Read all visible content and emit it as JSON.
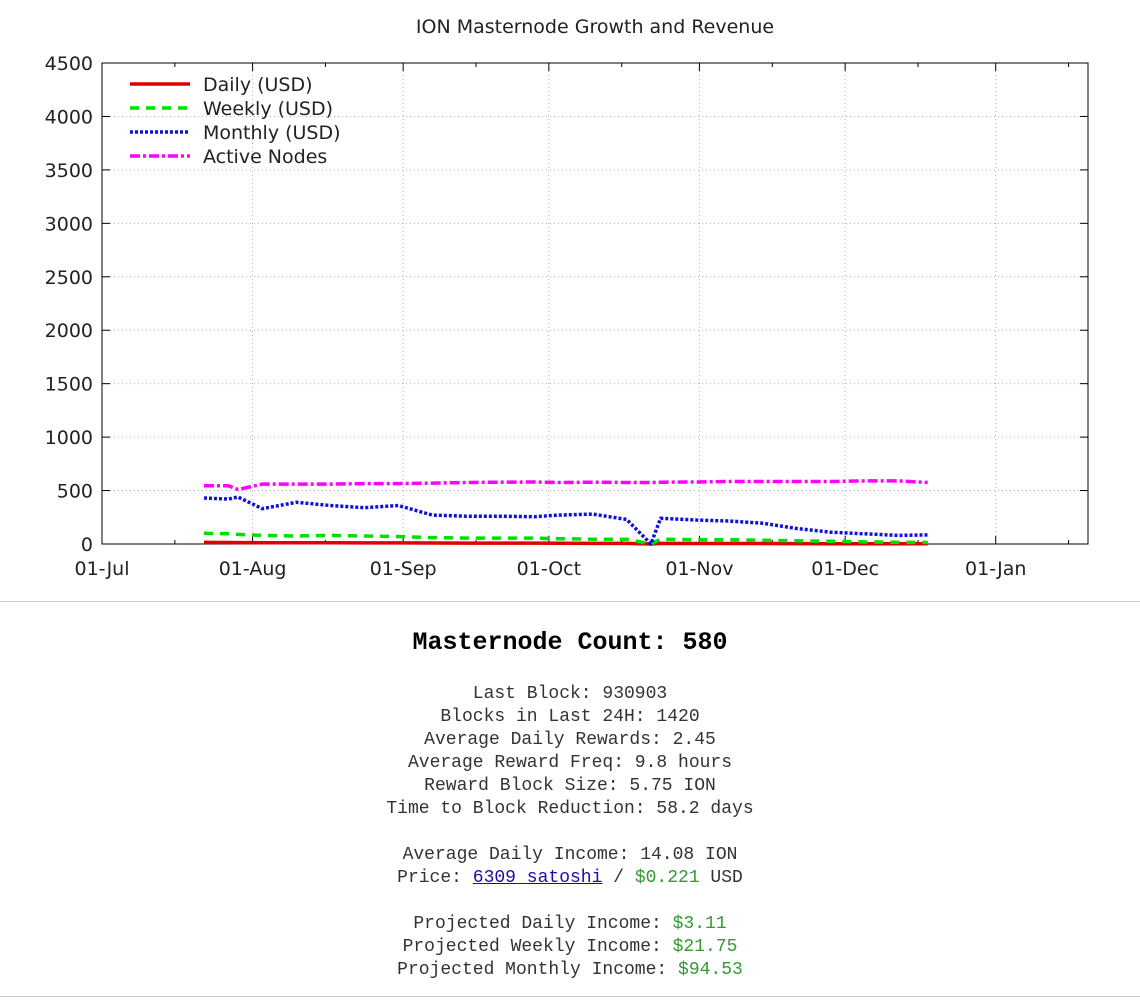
{
  "chart_data": {
    "type": "line",
    "title": "ION Masternode Growth and Revenue",
    "xlabel": "",
    "ylabel": "",
    "ylim": [
      0,
      4500
    ],
    "yticks": [
      0,
      500,
      1000,
      1500,
      2000,
      2500,
      3000,
      3500,
      4000,
      4500
    ],
    "xlim": [
      "2018-07-01",
      "2019-01-20"
    ],
    "xticks": [
      {
        "date": "2018-07-01",
        "label": "01-Jul"
      },
      {
        "date": "2018-08-01",
        "label": "01-Aug"
      },
      {
        "date": "2018-09-01",
        "label": "01-Sep"
      },
      {
        "date": "2018-10-01",
        "label": "01-Oct"
      },
      {
        "date": "2018-11-01",
        "label": "01-Nov"
      },
      {
        "date": "2018-12-01",
        "label": "01-Dec"
      },
      {
        "date": "2019-01-01",
        "label": "01-Jan"
      }
    ],
    "grid": true,
    "legend": "top-left",
    "x": [
      "2018-07-22",
      "2018-07-27",
      "2018-07-29",
      "2018-08-03",
      "2018-08-10",
      "2018-08-17",
      "2018-08-24",
      "2018-08-31",
      "2018-09-07",
      "2018-09-14",
      "2018-09-21",
      "2018-09-28",
      "2018-10-03",
      "2018-10-10",
      "2018-10-17",
      "2018-10-22",
      "2018-10-24",
      "2018-10-31",
      "2018-11-07",
      "2018-11-14",
      "2018-11-21",
      "2018-11-28",
      "2018-12-05",
      "2018-12-12",
      "2018-12-18"
    ],
    "series": [
      {
        "name": "Daily (USD)",
        "color": "#e00000",
        "dash": "",
        "values": [
          15,
          14,
          13,
          12,
          11,
          11,
          10,
          10,
          9,
          8,
          8,
          8,
          7,
          6,
          6,
          0,
          6,
          5,
          5,
          5,
          4,
          3,
          3,
          2,
          2
        ]
      },
      {
        "name": "Weekly (USD)",
        "color": "#00e000",
        "dash": "9,7",
        "values": [
          100,
          95,
          90,
          80,
          75,
          80,
          75,
          70,
          60,
          55,
          55,
          55,
          50,
          45,
          45,
          0,
          45,
          40,
          40,
          35,
          30,
          25,
          20,
          15,
          15
        ]
      },
      {
        "name": "Monthly (USD)",
        "color": "#1010dd",
        "dash": "3,2",
        "values": [
          430,
          420,
          440,
          330,
          390,
          360,
          340,
          360,
          270,
          260,
          260,
          255,
          270,
          280,
          230,
          0,
          240,
          225,
          215,
          195,
          145,
          110,
          95,
          80,
          85
        ]
      },
      {
        "name": "Active Nodes",
        "color": "#ff00ff",
        "dash": "10,3,3,3",
        "values": [
          545,
          545,
          510,
          560,
          560,
          560,
          565,
          565,
          570,
          575,
          578,
          580,
          575,
          578,
          575,
          575,
          578,
          580,
          585,
          585,
          585,
          585,
          590,
          590,
          575
        ]
      }
    ]
  },
  "stats": {
    "masternode_count": "Masternode Count: 580",
    "last_block": "Last Block: 930903",
    "blocks_24h": "Blocks in Last 24H: 1420",
    "avg_daily_rewards": "Average Daily Rewards: 2.45",
    "avg_reward_freq": "Average Reward Freq: 9.8 hours",
    "reward_block_size": "Reward Block Size: 5.75 ION",
    "time_to_reduction": "Time to Block Reduction: 58.2 days",
    "avg_daily_income": "Average Daily Income: 14.08 ION",
    "price_label": "Price: ",
    "price_satoshi": "6309 satoshi",
    "price_sep": " / ",
    "price_usd": "$0.221",
    "price_unit": " USD",
    "proj_daily_label": "Projected Daily Income: ",
    "proj_daily_value": "$3.11",
    "proj_weekly_label": "Projected Weekly Income: ",
    "proj_weekly_value": "$21.75",
    "proj_monthly_label": "Projected Monthly Income: ",
    "proj_monthly_value": "$94.53"
  }
}
